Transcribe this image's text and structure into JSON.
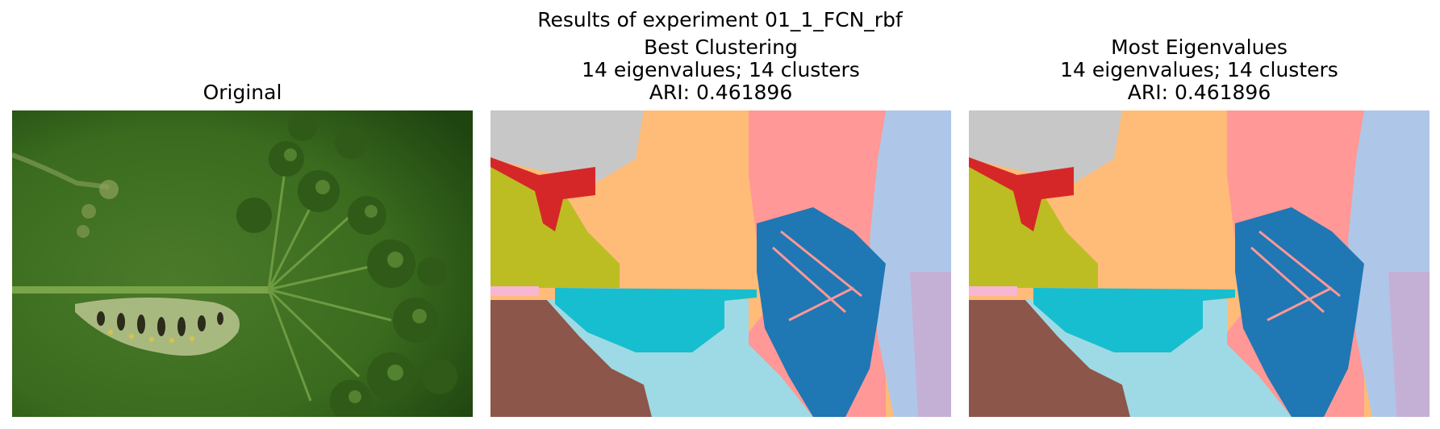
{
  "figure": {
    "suptitle": "Results of experiment 01_1_FCN_rbf"
  },
  "panels": [
    {
      "title_lines": [
        "Original"
      ]
    },
    {
      "title_lines": [
        "Best Clustering",
        "14 eigenvalues; 14 clusters",
        "ARI: 0.461896"
      ]
    },
    {
      "title_lines": [
        "Most Eigenvalues",
        "14 eigenvalues; 14 clusters",
        "ARI: 0.461896"
      ]
    }
  ],
  "colors": {
    "gray": "#c7c7c7",
    "orange": "#ffbb78",
    "pink": "#ff9896",
    "lightblue": "#aec7e8",
    "olive": "#bcbd22",
    "red": "#d62728",
    "blue": "#1f77b4",
    "cyan": "#17becf",
    "brown": "#8c564b",
    "paleblue": "#9edae5",
    "lavender": "#c5b0d5",
    "lightpink": "#f7b6d2",
    "green_bg": "#3a6b1e"
  }
}
